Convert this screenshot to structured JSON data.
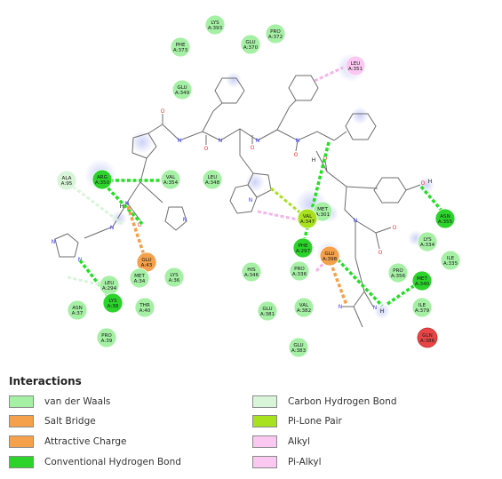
{
  "colors": {
    "vdw": "#a6f0a6",
    "salt": "#f5a04a",
    "attractive": "#f5a04a",
    "hbond": "#2bd32b",
    "hbond_line": "#22e022",
    "chb": "#d9f5d9",
    "chb_line": "#c8f0c8",
    "lonepair": "#a8e21e",
    "alkyl": "#fac8f0",
    "pialkyl": "#fac8f0",
    "pialkyl_line": "#f7b3ea",
    "unfavorable": "#e84646",
    "bond": "#6e6e6e",
    "nitrogen": "#3a3aff",
    "oxygen": "#ff2a2a"
  },
  "residues": [
    {
      "id": "lys393",
      "label": "LYS A:393",
      "kind": "vdw"
    },
    {
      "id": "pro372",
      "label": "PRO A:372",
      "kind": "vdw"
    },
    {
      "id": "glu370",
      "label": "GLU A:370",
      "kind": "vdw"
    },
    {
      "id": "phe373",
      "label": "PHE A:373",
      "kind": "vdw"
    },
    {
      "id": "glu349",
      "label": "GLU A:349",
      "kind": "vdw"
    },
    {
      "id": "leu351",
      "label": "LEU A:351",
      "kind": "alkyl"
    },
    {
      "id": "ala95",
      "label": "ALA A:95",
      "kind": "chb"
    },
    {
      "id": "arg350",
      "label": "ARG A:350",
      "kind": "hbond"
    },
    {
      "id": "val354",
      "label": "VAL A:354",
      "kind": "vdw"
    },
    {
      "id": "leu348",
      "label": "LEU A:348",
      "kind": "vdw"
    },
    {
      "id": "met301",
      "label": "MET A:301",
      "kind": "vdw"
    },
    {
      "id": "val347",
      "label": "VAL A:347",
      "kind": "lonepair"
    },
    {
      "id": "asn355",
      "label": "ASN A:355",
      "kind": "hbond"
    },
    {
      "id": "lys334",
      "label": "LYS A:334",
      "kind": "vdw"
    },
    {
      "id": "ile335",
      "label": "ILE A:335",
      "kind": "vdw"
    },
    {
      "id": "phe297",
      "label": "PHE A:297",
      "kind": "hbond"
    },
    {
      "id": "glu398",
      "label": "GLU A:398",
      "kind": "salt"
    },
    {
      "id": "pro336",
      "label": "PRO A:336",
      "kind": "vdw"
    },
    {
      "id": "pro356",
      "label": "PRO A:356",
      "kind": "vdw"
    },
    {
      "id": "met340",
      "label": "MET A:340",
      "kind": "hbond"
    },
    {
      "id": "glu43",
      "label": "GLU A:43",
      "kind": "attractive"
    },
    {
      "id": "lys36",
      "label": "LYS A:36",
      "kind": "vdw"
    },
    {
      "id": "met34",
      "label": "MET A:34",
      "kind": "vdw"
    },
    {
      "id": "his346",
      "label": "HIS A:346",
      "kind": "vdw"
    },
    {
      "id": "leu294",
      "label": "LEU A:294",
      "kind": "vdw"
    },
    {
      "id": "lys38",
      "label": "LYS A:38",
      "kind": "hbond"
    },
    {
      "id": "thr40",
      "label": "THR A:40",
      "kind": "vdw"
    },
    {
      "id": "asn37",
      "label": "ASN A:37",
      "kind": "vdw"
    },
    {
      "id": "glu381",
      "label": "GLU A:381",
      "kind": "vdw"
    },
    {
      "id": "val382",
      "label": "VAL A:382",
      "kind": "vdw"
    },
    {
      "id": "ile379",
      "label": "ILE A:379",
      "kind": "vdw"
    },
    {
      "id": "gln386",
      "label": "GLN A:386",
      "kind": "unfavorable"
    },
    {
      "id": "pro39",
      "label": "PRO A:39",
      "kind": "vdw"
    },
    {
      "id": "glu383",
      "label": "GLU A:383",
      "kind": "vdw"
    }
  ],
  "atoms": {
    "nitrogen": "N",
    "oxygen": "O",
    "hydrogen": "H"
  },
  "legend": {
    "title": "Interactions",
    "items": [
      {
        "label": "van der Waals",
        "kind": "vdw"
      },
      {
        "label": "Salt Bridge",
        "kind": "salt"
      },
      {
        "label": "Attractive Charge",
        "kind": "attractive"
      },
      {
        "label": "Conventional Hydrogen Bond",
        "kind": "hbond"
      },
      {
        "label": "Carbon Hydrogen Bond",
        "kind": "chb"
      },
      {
        "label": "Pi-Lone Pair",
        "kind": "lonepair"
      },
      {
        "label": "Alkyl",
        "kind": "alkyl"
      },
      {
        "label": "Pi-Alkyl",
        "kind": "pialkyl"
      }
    ]
  }
}
